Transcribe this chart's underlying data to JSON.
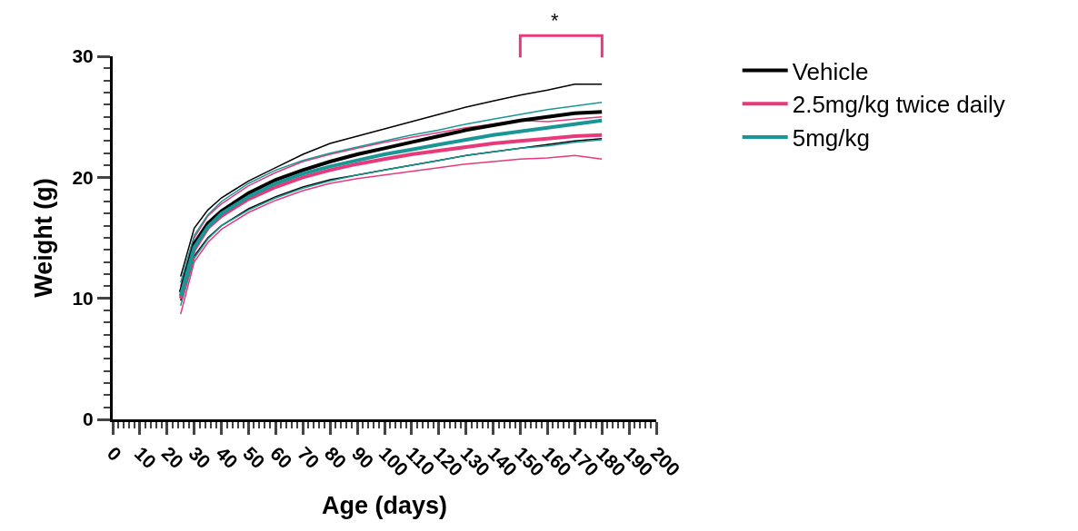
{
  "chart_data": {
    "type": "line",
    "xlabel": "Age (days)",
    "ylabel": "Weight (g)",
    "x": [
      25,
      30,
      35,
      40,
      50,
      60,
      70,
      80,
      90,
      100,
      110,
      120,
      130,
      140,
      150,
      160,
      170,
      180
    ],
    "xlim": [
      0,
      200
    ],
    "ylim": [
      0,
      30
    ],
    "xticks": [
      0,
      10,
      20,
      30,
      40,
      50,
      60,
      70,
      80,
      90,
      100,
      110,
      120,
      130,
      140,
      150,
      160,
      170,
      180,
      190,
      200,
      {
        "value": 2,
        "label": null
      },
      {
        "value": 4,
        "label": null
      },
      {
        "value": 6,
        "label": null
      },
      {
        "value": 8,
        "label": null
      },
      {
        "value": 12,
        "label": null
      },
      {
        "value": 14,
        "label": null
      },
      {
        "value": 16,
        "label": null
      },
      {
        "value": 18,
        "label": null
      },
      {
        "value": 22,
        "label": null
      },
      {
        "value": 24,
        "label": null
      },
      {
        "value": 26,
        "label": null
      },
      {
        "value": 28,
        "label": null
      },
      {
        "value": 32,
        "label": null
      },
      {
        "value": 34,
        "label": null
      },
      {
        "value": 36,
        "label": null
      },
      {
        "value": 38,
        "label": null
      },
      {
        "value": 42,
        "label": null
      },
      {
        "value": 44,
        "label": null
      },
      {
        "value": 46,
        "label": null
      },
      {
        "value": 48,
        "label": null
      },
      {
        "value": 52,
        "label": null
      },
      {
        "value": 54,
        "label": null
      },
      {
        "value": 56,
        "label": null
      },
      {
        "value": 58,
        "label": null
      },
      {
        "value": 62,
        "label": null
      },
      {
        "value": 64,
        "label": null
      },
      {
        "value": 66,
        "label": null
      },
      {
        "value": 68,
        "label": null
      },
      {
        "value": 72,
        "label": null
      },
      {
        "value": 74,
        "label": null
      },
      {
        "value": 76,
        "label": null
      },
      {
        "value": 78,
        "label": null
      },
      {
        "value": 82,
        "label": null
      },
      {
        "value": 84,
        "label": null
      },
      {
        "value": 86,
        "label": null
      },
      {
        "value": 88,
        "label": null
      },
      {
        "value": 92,
        "label": null
      },
      {
        "value": 94,
        "label": null
      },
      {
        "value": 96,
        "label": null
      },
      {
        "value": 98,
        "label": null
      },
      {
        "value": 102,
        "label": null
      },
      {
        "value": 104,
        "label": null
      },
      {
        "value": 106,
        "label": null
      },
      {
        "value": 108,
        "label": null
      },
      {
        "value": 112,
        "label": null
      },
      {
        "value": 114,
        "label": null
      },
      {
        "value": 116,
        "label": null
      },
      {
        "value": 118,
        "label": null
      },
      {
        "value": 122,
        "label": null
      },
      {
        "value": 124,
        "label": null
      },
      {
        "value": 126,
        "label": null
      },
      {
        "value": 128,
        "label": null
      },
      {
        "value": 132,
        "label": null
      },
      {
        "value": 134,
        "label": null
      },
      {
        "value": 136,
        "label": null
      },
      {
        "value": 138,
        "label": null
      },
      {
        "value": 142,
        "label": null
      },
      {
        "value": 144,
        "label": null
      },
      {
        "value": 146,
        "label": null
      },
      {
        "value": 148,
        "label": null
      },
      {
        "value": 152,
        "label": null
      },
      {
        "value": 154,
        "label": null
      },
      {
        "value": 156,
        "label": null
      },
      {
        "value": 158,
        "label": null
      },
      {
        "value": 162,
        "label": null
      },
      {
        "value": 164,
        "label": null
      },
      {
        "value": 166,
        "label": null
      },
      {
        "value": 168,
        "label": null
      },
      {
        "value": 172,
        "label": null
      },
      {
        "value": 174,
        "label": null
      },
      {
        "value": 176,
        "label": null
      },
      {
        "value": 178,
        "label": null
      },
      {
        "value": 182,
        "label": null
      },
      {
        "value": 184,
        "label": null
      },
      {
        "value": 186,
        "label": null
      },
      {
        "value": 188,
        "label": null
      },
      {
        "value": 192,
        "label": null
      },
      {
        "value": 194,
        "label": null
      },
      {
        "value": 196,
        "label": null
      },
      {
        "value": 198,
        "label": null
      }
    ],
    "yticks": [
      0,
      10,
      20,
      30,
      {
        "value": 1,
        "label": null
      },
      {
        "value": 2,
        "label": null
      },
      {
        "value": 3,
        "label": null
      },
      {
        "value": 4,
        "label": null
      },
      {
        "value": 5,
        "label": null
      },
      {
        "value": 6,
        "label": null
      },
      {
        "value": 7,
        "label": null
      },
      {
        "value": 8,
        "label": null
      },
      {
        "value": 9,
        "label": null
      },
      {
        "value": 11,
        "label": null
      },
      {
        "value": 12,
        "label": null
      },
      {
        "value": 13,
        "label": null
      },
      {
        "value": 14,
        "label": null
      },
      {
        "value": 15,
        "label": null
      },
      {
        "value": 16,
        "label": null
      },
      {
        "value": 17,
        "label": null
      },
      {
        "value": 18,
        "label": null
      },
      {
        "value": 19,
        "label": null
      },
      {
        "value": 21,
        "label": null
      },
      {
        "value": 22,
        "label": null
      },
      {
        "value": 23,
        "label": null
      },
      {
        "value": 24,
        "label": null
      },
      {
        "value": 25,
        "label": null
      },
      {
        "value": 26,
        "label": null
      },
      {
        "value": 27,
        "label": null
      },
      {
        "value": 28,
        "label": null
      },
      {
        "value": 29,
        "label": null
      }
    ],
    "grid": false,
    "legend": "top right",
    "marker": "none",
    "line_style": "solid",
    "series": [
      {
        "name": "Vehicle",
        "color": "#000000",
        "values": [
          10.5,
          14.5,
          16.2,
          17.2,
          18.7,
          19.8,
          20.6,
          21.3,
          21.9,
          22.4,
          22.9,
          23.4,
          23.9,
          24.3,
          24.7,
          25.0,
          25.3,
          25.4
        ]
      },
      {
        "name": "2.5mg/kg twice daily",
        "color": "#e8397a",
        "values": [
          10.0,
          14.0,
          15.8,
          16.8,
          18.2,
          19.2,
          20.0,
          20.6,
          21.1,
          21.5,
          21.9,
          22.2,
          22.5,
          22.8,
          23.0,
          23.2,
          23.4,
          23.5
        ]
      },
      {
        "name": "5mg/kg",
        "color": "#1a9696",
        "values": [
          10.2,
          14.2,
          15.9,
          17.0,
          18.4,
          19.5,
          20.3,
          20.9,
          21.4,
          21.9,
          22.3,
          22.7,
          23.1,
          23.5,
          23.8,
          24.1,
          24.4,
          24.7
        ]
      },
      {
        "color": "#000000",
        "values": [
          11.8,
          15.8,
          17.3,
          18.3,
          19.7,
          20.8,
          21.9,
          22.8,
          23.4,
          24.0,
          24.6,
          25.2,
          25.8,
          26.3,
          26.8,
          27.2,
          27.7,
          27.7
        ]
      },
      {
        "color": "#000000",
        "values": [
          9.8,
          13.5,
          15.0,
          16.0,
          17.4,
          18.4,
          19.2,
          19.8,
          20.2,
          20.6,
          21.0,
          21.4,
          21.8,
          22.1,
          22.4,
          22.7,
          23.0,
          23.2
        ]
      },
      {
        "color": "#e8397a",
        "values": [
          11.0,
          15.0,
          16.8,
          17.8,
          19.3,
          20.4,
          21.3,
          21.9,
          22.4,
          22.9,
          23.3,
          23.7,
          24.1,
          24.4,
          24.7,
          24.6,
          24.8,
          25.0
        ]
      },
      {
        "color": "#e8397a",
        "values": [
          8.7,
          13.0,
          14.6,
          15.7,
          17.1,
          18.1,
          18.9,
          19.5,
          19.9,
          20.2,
          20.5,
          20.8,
          21.1,
          21.3,
          21.5,
          21.6,
          21.8,
          21.5
        ]
      },
      {
        "color": "#1a9696",
        "values": [
          11.3,
          15.2,
          16.9,
          18.0,
          19.5,
          20.6,
          21.4,
          22.0,
          22.5,
          23.0,
          23.5,
          23.9,
          24.4,
          24.8,
          25.2,
          25.6,
          25.9,
          26.2
        ]
      },
      {
        "color": "#1a9696",
        "values": [
          9.4,
          13.3,
          14.9,
          16.0,
          17.3,
          18.3,
          19.1,
          19.7,
          20.2,
          20.6,
          21.0,
          21.4,
          21.8,
          22.1,
          22.4,
          22.6,
          22.9,
          23.1
        ]
      }
    ],
    "annotations": [
      "*"
    ]
  }
}
